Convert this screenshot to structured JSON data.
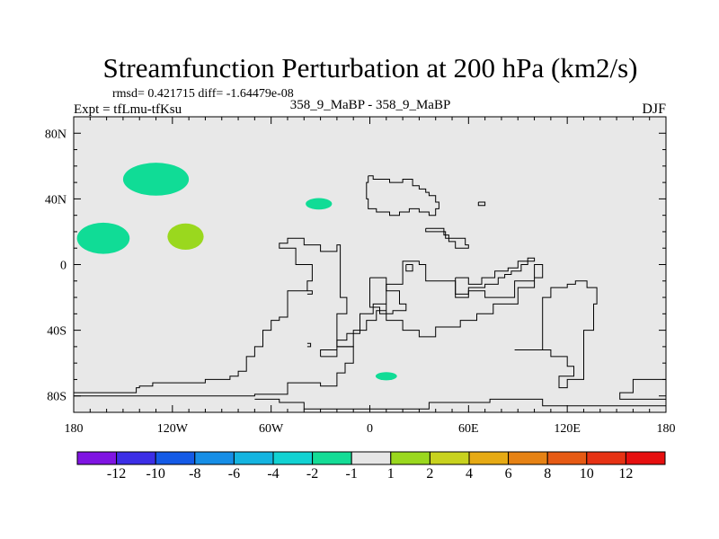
{
  "chart_data": {
    "type": "contour-map",
    "title": "Streamfunction Perturbation at 200 hPa (km2/s)",
    "stats_line": "rmsd= 0.421715 diff= -1.64479e-08",
    "subtitle": "358_9_MaBP - 358_9_MaBP",
    "experiment": "Expt = tfLmu-tfKsu",
    "season": "DJF",
    "x_range": [
      -180,
      180
    ],
    "y_range": [
      -90,
      90
    ],
    "x_ticks": [
      {
        "value": -180,
        "label": "180"
      },
      {
        "value": -120,
        "label": "120W"
      },
      {
        "value": -60,
        "label": "60W"
      },
      {
        "value": 0,
        "label": "0"
      },
      {
        "value": 60,
        "label": "60E"
      },
      {
        "value": 120,
        "label": "120E"
      },
      {
        "value": 180,
        "label": "180"
      }
    ],
    "y_ticks": [
      {
        "value": 80,
        "label": "80N"
      },
      {
        "value": 40,
        "label": "40N"
      },
      {
        "value": 0,
        "label": "0"
      },
      {
        "value": -40,
        "label": "40S"
      },
      {
        "value": -80,
        "label": "80S"
      }
    ],
    "background_color": "#e8e8e8",
    "anomalies": [
      {
        "lon": -130,
        "lat": 52,
        "rlon": 20,
        "rlat": 10,
        "color": "#10dc96",
        "bin": "-2 to -1"
      },
      {
        "lon": -162,
        "lat": 16,
        "rlon": 16,
        "rlat": 9.5,
        "color": "#10dc96",
        "bin": "-2 to -1"
      },
      {
        "lon": -112,
        "lat": 17,
        "rlon": 11,
        "rlat": 8,
        "color": "#9ad81e",
        "bin": "1 to 2"
      },
      {
        "lon": -31,
        "lat": 37,
        "rlon": 8,
        "rlat": 3.5,
        "color": "#10dc96",
        "bin": "-2 to -1"
      },
      {
        "lon": 10,
        "lat": -68,
        "rlon": 6.5,
        "rlat": 2.5,
        "color": "#10dc96",
        "bin": "-2 to -1"
      }
    ],
    "coastlines": [
      [
        [
          -180,
          -78
        ],
        [
          -142,
          -78
        ],
        [
          -142,
          -75
        ],
        [
          -140,
          -75
        ],
        [
          -140,
          -74
        ],
        [
          -132,
          -74
        ],
        [
          -132,
          -72
        ],
        [
          -100,
          -72
        ],
        [
          -100,
          -70
        ],
        [
          -85,
          -70
        ],
        [
          -85,
          -68
        ],
        [
          -80,
          -68
        ],
        [
          -80,
          -65
        ],
        [
          -75,
          -65
        ],
        [
          -75,
          -56
        ],
        [
          -70,
          -56
        ],
        [
          -70,
          -50
        ],
        [
          -65,
          -50
        ],
        [
          -65,
          -40
        ],
        [
          -60,
          -40
        ],
        [
          -60,
          -34
        ],
        [
          -55,
          -34
        ],
        [
          -55,
          -32
        ],
        [
          -50,
          -32
        ],
        [
          -50,
          -16
        ],
        [
          -38,
          -16
        ],
        [
          -38,
          -10
        ],
        [
          -35,
          -10
        ],
        [
          -35,
          0
        ],
        [
          -45,
          0
        ],
        [
          -45,
          10
        ],
        [
          -55,
          10
        ],
        [
          -55,
          13
        ],
        [
          -50,
          13
        ],
        [
          -50,
          16
        ],
        [
          -40,
          16
        ],
        [
          -40,
          12
        ],
        [
          -30,
          12
        ],
        [
          -30,
          8
        ],
        [
          -20,
          8
        ],
        [
          -20,
          12
        ],
        [
          -18,
          12
        ],
        [
          -18,
          -20
        ],
        [
          -14,
          -20
        ],
        [
          -14,
          -30
        ],
        [
          -20,
          -30
        ],
        [
          -20,
          -50
        ],
        [
          -10,
          -50
        ],
        [
          -10,
          -60
        ],
        [
          -15,
          -60
        ],
        [
          -15,
          -66
        ],
        [
          -20,
          -66
        ],
        [
          -20,
          -74
        ],
        [
          -30,
          -74
        ],
        [
          -30,
          -72
        ],
        [
          -50,
          -72
        ],
        [
          -50,
          -79
        ],
        [
          -70,
          -79
        ],
        [
          -70,
          -80
        ],
        [
          -180,
          -80
        ]
      ],
      [
        [
          -70,
          -82
        ],
        [
          -55,
          -82
        ],
        [
          -55,
          -84
        ],
        [
          -40,
          -84
        ],
        [
          -40,
          -88
        ],
        [
          36,
          -88
        ],
        [
          36,
          -84
        ],
        [
          73,
          -84
        ],
        [
          73,
          -82
        ],
        [
          105,
          -82
        ],
        [
          105,
          -86
        ],
        [
          180,
          -86
        ]
      ],
      [
        [
          180,
          -70
        ],
        [
          160,
          -70
        ],
        [
          160,
          -78
        ],
        [
          152,
          -78
        ],
        [
          152,
          -82
        ],
        [
          180,
          -82
        ]
      ],
      [
        [
          88,
          -52
        ],
        [
          105,
          -52
        ],
        [
          105,
          -20
        ],
        [
          110,
          -20
        ],
        [
          110,
          -14
        ],
        [
          120,
          -14
        ],
        [
          120,
          -12
        ],
        [
          125,
          -12
        ],
        [
          125,
          -10
        ],
        [
          132,
          -10
        ],
        [
          132,
          -14
        ],
        [
          138,
          -14
        ],
        [
          138,
          -24
        ],
        [
          136,
          -24
        ],
        [
          136,
          -40
        ],
        [
          130,
          -40
        ],
        [
          130,
          -70
        ],
        [
          120,
          -70
        ],
        [
          120,
          -75
        ],
        [
          115,
          -75
        ],
        [
          115,
          -68
        ],
        [
          124,
          -68
        ],
        [
          124,
          -62
        ],
        [
          120,
          -62
        ],
        [
          120,
          -56
        ],
        [
          110,
          -56
        ],
        [
          110,
          -52
        ],
        [
          88,
          -52
        ]
      ],
      [
        [
          -30,
          -56
        ],
        [
          -20,
          -56
        ],
        [
          -20,
          -46
        ],
        [
          -14,
          -46
        ],
        [
          -14,
          -42
        ],
        [
          -6,
          -42
        ],
        [
          -6,
          -30
        ],
        [
          2,
          -30
        ],
        [
          2,
          -24
        ],
        [
          10,
          -24
        ],
        [
          10,
          -34
        ],
        [
          20,
          -34
        ],
        [
          20,
          -40
        ],
        [
          30,
          -40
        ],
        [
          30,
          -44
        ],
        [
          40,
          -44
        ],
        [
          40,
          -38
        ],
        [
          55,
          -38
        ],
        [
          55,
          -34
        ],
        [
          65,
          -34
        ],
        [
          65,
          -30
        ],
        [
          75,
          -30
        ],
        [
          75,
          -24
        ],
        [
          90,
          -24
        ],
        [
          90,
          -14
        ],
        [
          100,
          -14
        ],
        [
          100,
          -8
        ],
        [
          105,
          -8
        ],
        [
          105,
          0
        ],
        [
          100,
          0
        ],
        [
          100,
          -10
        ],
        [
          88,
          -10
        ],
        [
          88,
          -20
        ],
        [
          70,
          -20
        ],
        [
          70,
          -16
        ],
        [
          60,
          -16
        ],
        [
          60,
          -20
        ],
        [
          52,
          -20
        ],
        [
          52,
          -10
        ],
        [
          34,
          -10
        ],
        [
          34,
          0
        ],
        [
          30,
          0
        ],
        [
          30,
          2
        ],
        [
          20,
          2
        ],
        [
          20,
          -12
        ],
        [
          10,
          -12
        ],
        [
          10,
          -28
        ],
        [
          4,
          -28
        ],
        [
          4,
          -34
        ],
        [
          -2,
          -34
        ],
        [
          -2,
          -40
        ],
        [
          -10,
          -40
        ],
        [
          -10,
          -50
        ],
        [
          -20,
          -50
        ],
        [
          -20,
          -52
        ],
        [
          -30,
          -52
        ],
        [
          -30,
          -56
        ]
      ],
      [
        [
          0,
          -8
        ],
        [
          10,
          -8
        ],
        [
          10,
          -16
        ],
        [
          18,
          -16
        ],
        [
          18,
          -24
        ],
        [
          22,
          -24
        ],
        [
          22,
          -28
        ],
        [
          14,
          -28
        ],
        [
          14,
          -30
        ],
        [
          6,
          -30
        ],
        [
          6,
          -26
        ],
        [
          0,
          -26
        ],
        [
          0,
          -8
        ]
      ],
      [
        [
          -38,
          -16
        ],
        [
          -35,
          -16
        ],
        [
          -35,
          -18
        ],
        [
          -38,
          -18
        ]
      ],
      [
        [
          -1,
          54
        ],
        [
          2,
          54
        ],
        [
          2,
          52
        ],
        [
          12,
          52
        ],
        [
          12,
          50
        ],
        [
          20,
          50
        ],
        [
          20,
          52
        ],
        [
          26,
          52
        ],
        [
          26,
          48
        ],
        [
          30,
          48
        ],
        [
          30,
          46
        ],
        [
          34,
          46
        ],
        [
          34,
          44
        ],
        [
          36,
          44
        ],
        [
          36,
          42
        ],
        [
          40,
          42
        ],
        [
          40,
          38
        ],
        [
          42,
          38
        ],
        [
          42,
          34
        ],
        [
          40,
          34
        ],
        [
          40,
          30
        ],
        [
          36,
          30
        ],
        [
          36,
          32
        ],
        [
          30,
          32
        ],
        [
          30,
          34
        ],
        [
          24,
          34
        ],
        [
          24,
          32
        ],
        [
          18,
          32
        ],
        [
          18,
          30
        ],
        [
          12,
          30
        ],
        [
          12,
          32
        ],
        [
          4,
          32
        ],
        [
          4,
          34
        ],
        [
          -1,
          34
        ],
        [
          -1,
          40
        ],
        [
          -2,
          40
        ],
        [
          -2,
          50
        ],
        [
          -1,
          50
        ],
        [
          -1,
          54
        ]
      ],
      [
        [
          34,
          22
        ],
        [
          45,
          22
        ],
        [
          45,
          18
        ],
        [
          48,
          18
        ],
        [
          48,
          14
        ],
        [
          52,
          14
        ],
        [
          52,
          10
        ],
        [
          60,
          10
        ],
        [
          60,
          12
        ],
        [
          58,
          12
        ],
        [
          58,
          16
        ],
        [
          46,
          16
        ],
        [
          46,
          20
        ],
        [
          34,
          20
        ],
        [
          34,
          22
        ]
      ],
      [
        [
          66,
          38
        ],
        [
          70,
          38
        ],
        [
          70,
          36
        ],
        [
          66,
          36
        ],
        [
          66,
          38
        ]
      ],
      [
        [
          22,
          0
        ],
        [
          26,
          0
        ],
        [
          26,
          -4
        ],
        [
          22,
          -4
        ],
        [
          22,
          0
        ]
      ],
      [
        [
          52,
          -8
        ],
        [
          60,
          -8
        ],
        [
          60,
          -12
        ],
        [
          68,
          -12
        ],
        [
          68,
          -8
        ],
        [
          76,
          -8
        ],
        [
          76,
          -4
        ],
        [
          84,
          -4
        ],
        [
          84,
          -2
        ],
        [
          90,
          -2
        ],
        [
          90,
          2
        ],
        [
          96,
          2
        ],
        [
          96,
          4
        ],
        [
          100,
          4
        ],
        [
          100,
          2
        ],
        [
          96,
          2
        ],
        [
          96,
          0
        ],
        [
          92,
          0
        ],
        [
          92,
          -4
        ],
        [
          86,
          -4
        ],
        [
          86,
          -6
        ],
        [
          82,
          -6
        ],
        [
          82,
          -8
        ],
        [
          78,
          -8
        ],
        [
          78,
          -12
        ],
        [
          70,
          -12
        ],
        [
          70,
          -14
        ],
        [
          60,
          -14
        ],
        [
          60,
          -18
        ],
        [
          52,
          -18
        ],
        [
          52,
          -8
        ]
      ],
      [
        [
          -38,
          -48
        ],
        [
          -36,
          -48
        ],
        [
          -36,
          -50
        ],
        [
          -38,
          -50
        ]
      ]
    ],
    "colorbar": {
      "labels": [
        "-12",
        "-10",
        "-8",
        "-6",
        "-4",
        "-2",
        "-1",
        "1",
        "2",
        "4",
        "6",
        "8",
        "10",
        "12"
      ],
      "colors": [
        "#7f14e2",
        "#3c2ee6",
        "#145ae6",
        "#168ee6",
        "#14b4e0",
        "#12d2d2",
        "#14dc96",
        "#e6e6e6",
        "#9ad81e",
        "#c8d21e",
        "#e6aa14",
        "#e68214",
        "#e65a14",
        "#e63214",
        "#e60f0f"
      ]
    }
  }
}
